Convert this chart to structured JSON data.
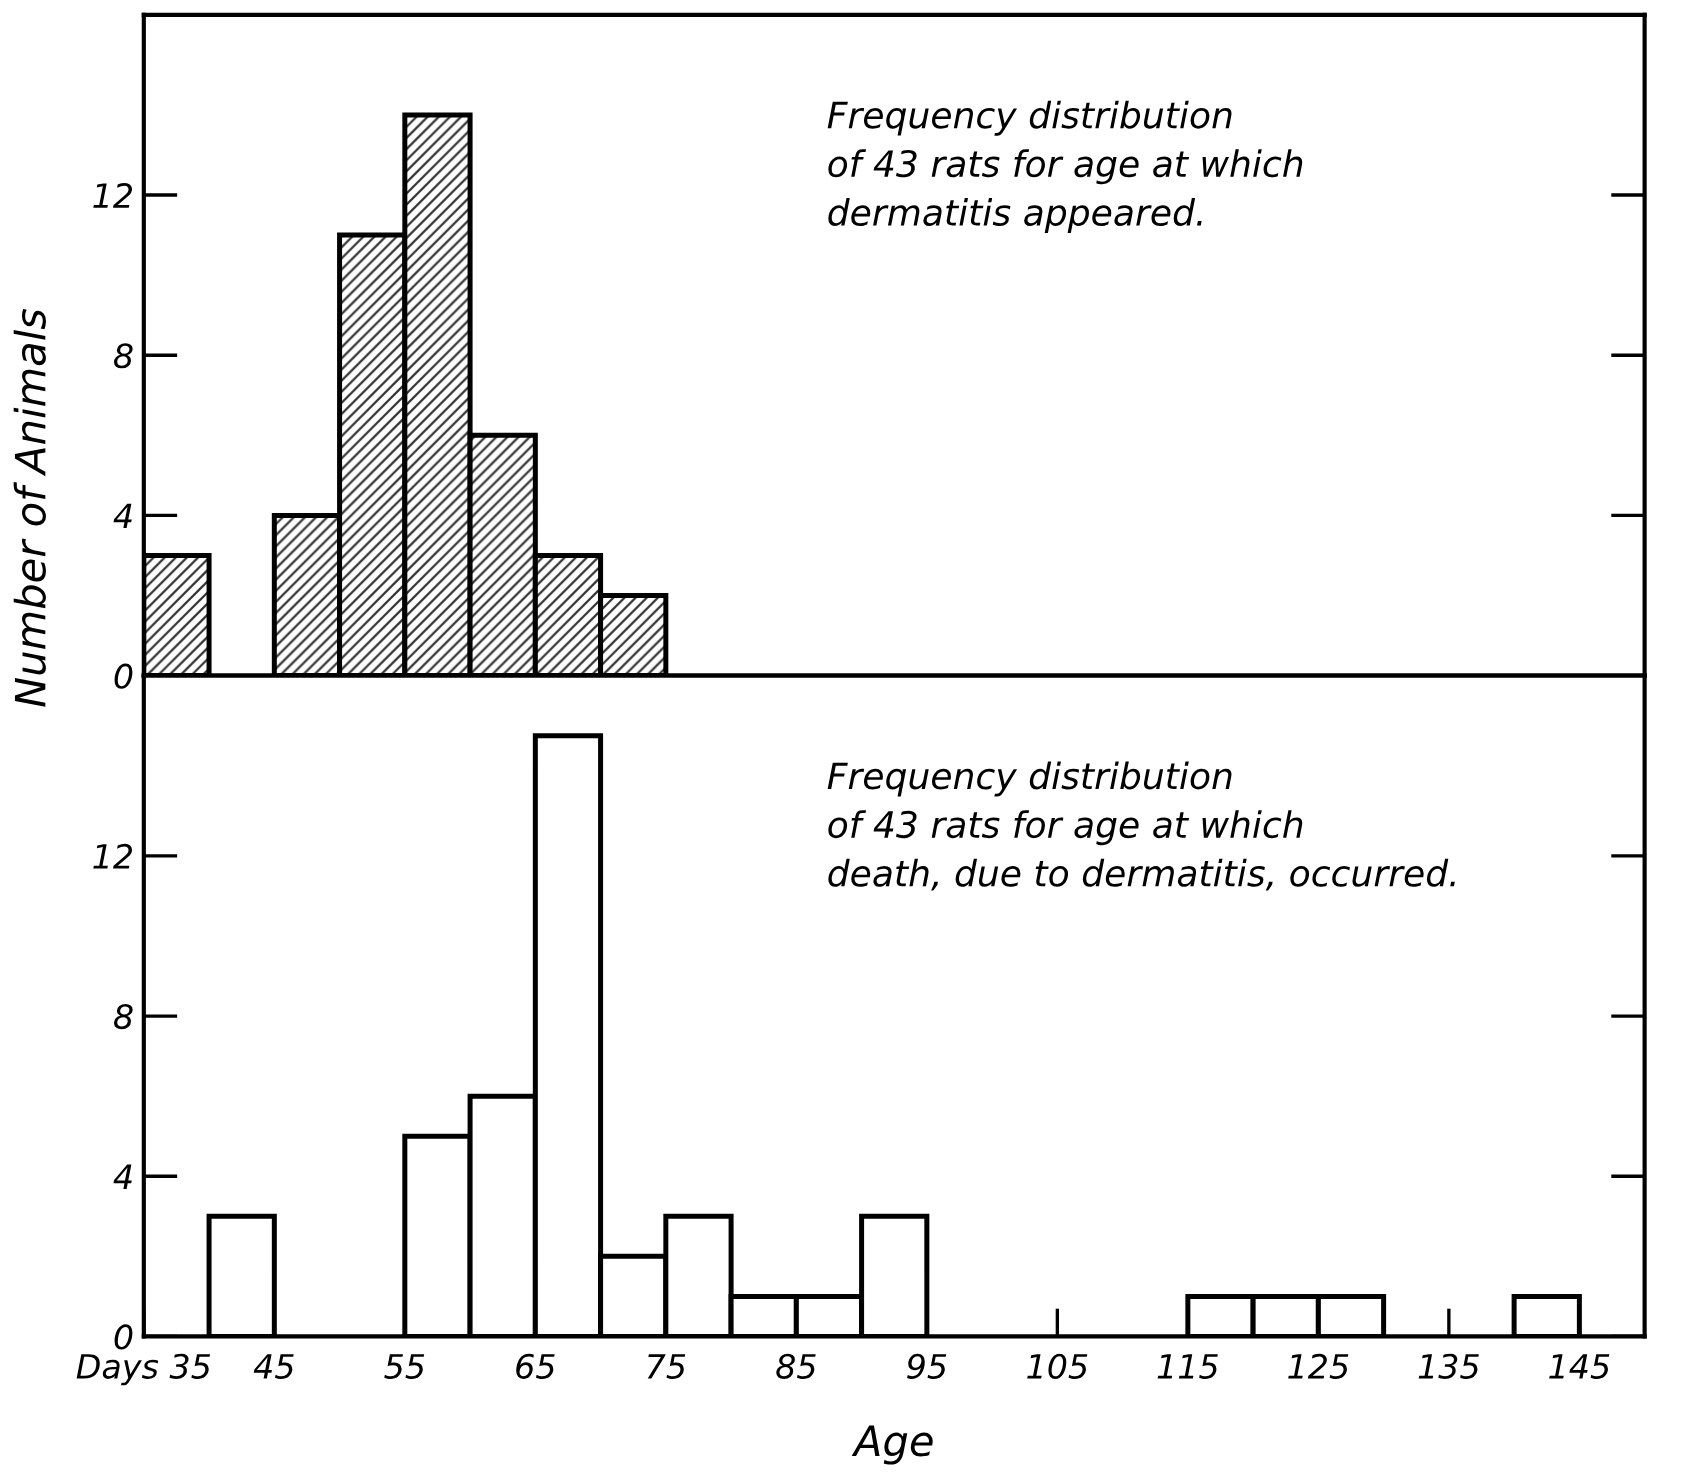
{
  "chart_data": [
    {
      "type": "histogram",
      "ylabel": "Number of Animals",
      "annotations": [
        "Frequency distribution\nof 43 rats for age at which\ndermatitis appeared."
      ],
      "bins": [
        35,
        40,
        45,
        50,
        55,
        60,
        65,
        70,
        75
      ],
      "values": [
        3,
        0,
        4,
        11,
        14,
        6,
        3,
        2
      ],
      "color": "#333333",
      "xlim": [
        35,
        150
      ],
      "ylim": [
        0,
        16.5
      ],
      "yticks": [
        0,
        4,
        8,
        12
      ],
      "tick_labels": "y",
      "grid": false,
      "legend": false
    },
    {
      "type": "histogram",
      "xlabel": "Age",
      "annotations": [
        "Frequency distribution\nof 43 rats for age at which\ndeath, due to dermatitis, occurred."
      ],
      "bins": [
        40,
        45,
        50,
        55,
        60,
        65,
        70,
        75,
        80,
        85,
        90,
        95,
        100,
        105,
        110,
        115,
        120,
        125,
        130,
        135,
        140,
        145
      ],
      "values": [
        3,
        0,
        0,
        5,
        6,
        15,
        2,
        3,
        1,
        1,
        3,
        0,
        0,
        0,
        0,
        1,
        1,
        1,
        0,
        0,
        1
      ],
      "color": "#ffffff",
      "xlim": [
        35,
        150
      ],
      "xticks": [
        {
          "value": 35,
          "label": "Days 35"
        },
        45,
        55,
        65,
        75,
        85,
        95,
        105,
        115,
        125,
        135,
        145
      ],
      "ylim": [
        0,
        16.5
      ],
      "yticks": [
        0,
        4,
        8,
        12
      ],
      "grid": false,
      "legend": false
    }
  ]
}
